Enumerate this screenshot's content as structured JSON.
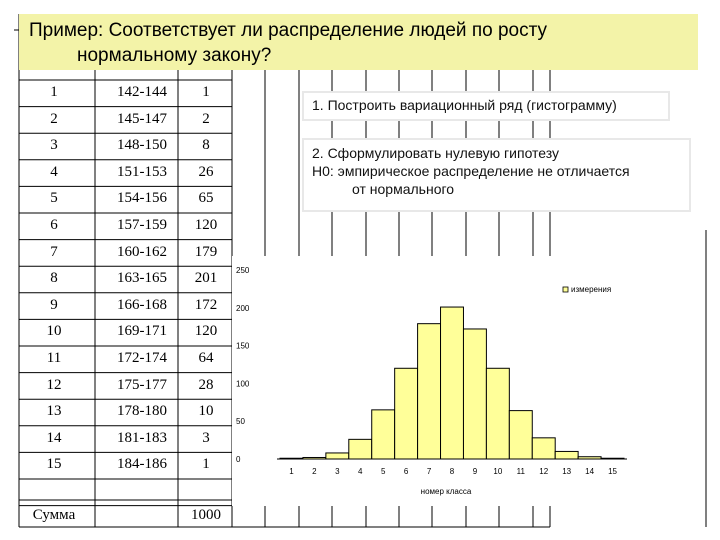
{
  "title": {
    "line1": "Пример: Соответствует ли распределение людей по росту",
    "line2": "нормальному закону?"
  },
  "table": {
    "rows": [
      {
        "n": "1",
        "range": "142-144",
        "count": "1"
      },
      {
        "n": "2",
        "range": "145-147",
        "count": "2"
      },
      {
        "n": "3",
        "range": "148-150",
        "count": "8"
      },
      {
        "n": "4",
        "range": "151-153",
        "count": "26"
      },
      {
        "n": "5",
        "range": "154-156",
        "count": "65"
      },
      {
        "n": "6",
        "range": "157-159",
        "count": "120"
      },
      {
        "n": "7",
        "range": "160-162",
        "count": "179"
      },
      {
        "n": "8",
        "range": "163-165",
        "count": "201"
      },
      {
        "n": "9",
        "range": "166-168",
        "count": "172"
      },
      {
        "n": "10",
        "range": "169-171",
        "count": "120"
      },
      {
        "n": "11",
        "range": "172-174",
        "count": "64"
      },
      {
        "n": "12",
        "range": "175-177",
        "count": "28"
      },
      {
        "n": "13",
        "range": "178-180",
        "count": "10"
      },
      {
        "n": "14",
        "range": "181-183",
        "count": "3"
      },
      {
        "n": "15",
        "range": "184-186",
        "count": "1"
      }
    ],
    "sum_label": "Сумма",
    "sum_value": "1000"
  },
  "notes": {
    "step1": "1. Построить вариационный ряд (гистограмму)",
    "step2_line1": "2. Сформулировать нулевую гипотезу",
    "step2_line2": "Н0: эмпирическое распределение не отличается",
    "step2_line3": "от нормального"
  },
  "colors": {
    "title_bg": "#f3f3a8",
    "bar_fill": "#ffff99",
    "grid_line": "#000000"
  },
  "chart_data": {
    "type": "bar",
    "categories": [
      "1",
      "2",
      "3",
      "4",
      "5",
      "6",
      "7",
      "8",
      "9",
      "10",
      "11",
      "12",
      "13",
      "14",
      "15"
    ],
    "series": [
      {
        "name": "измерения",
        "values": [
          1,
          2,
          8,
          26,
          65,
          120,
          179,
          201,
          172,
          120,
          64,
          28,
          10,
          3,
          1
        ]
      }
    ],
    "xlabel": "номер класса",
    "ylabel": "",
    "ylim": [
      0,
      250
    ],
    "yticks": [
      "0",
      "50",
      "100",
      "150",
      "200",
      "250"
    ],
    "legend": "top-right",
    "grid": false
  }
}
